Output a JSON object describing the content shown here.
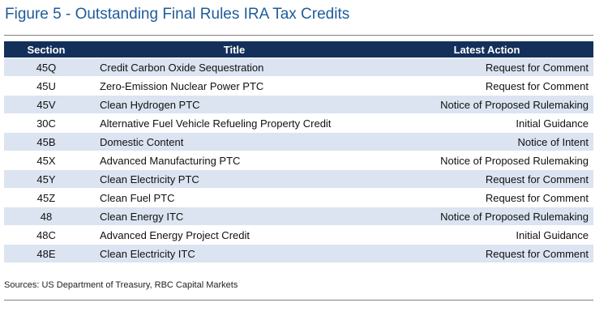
{
  "figure": {
    "title": "Figure 5 - Outstanding Final Rules IRA Tax Credits",
    "source": "Sources: US Department of Treasury, RBC Capital Markets"
  },
  "table": {
    "headers": [
      "Section",
      "Title",
      "Latest Action"
    ],
    "rows": [
      {
        "section": "45Q",
        "title": "Credit Carbon Oxide Sequestration",
        "action": "Request for Comment"
      },
      {
        "section": "45U",
        "title": "Zero-Emission Nuclear Power PTC",
        "action": "Request for Comment"
      },
      {
        "section": "45V",
        "title": "Clean Hydrogen PTC",
        "action": "Notice of Proposed Rulemaking"
      },
      {
        "section": "30C",
        "title": "Alternative Fuel Vehicle Refueling Property Credit",
        "action": "Initial Guidance"
      },
      {
        "section": "45B",
        "title": "Domestic Content",
        "action": "Notice of Intent"
      },
      {
        "section": "45X",
        "title": "Advanced Manufacturing PTC",
        "action": "Notice of Proposed Rulemaking"
      },
      {
        "section": "45Y",
        "title": "Clean Electricity PTC",
        "action": "Request for Comment"
      },
      {
        "section": "45Z",
        "title": "Clean Fuel PTC",
        "action": "Request for Comment"
      },
      {
        "section": "48",
        "title": "Clean Energy ITC",
        "action": "Notice of Proposed Rulemaking"
      },
      {
        "section": "48C",
        "title": "Advanced Energy Project Credit",
        "action": "Initial Guidance"
      },
      {
        "section": "48E",
        "title": "Clean Electricity ITC",
        "action": "Request for Comment"
      }
    ]
  }
}
